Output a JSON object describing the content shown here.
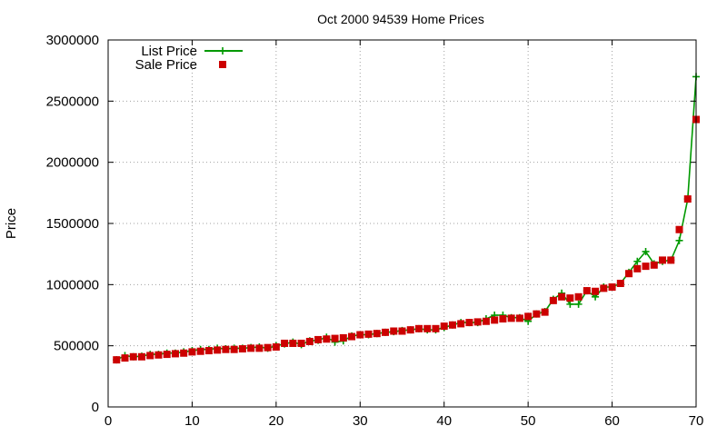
{
  "chart_data": {
    "type": "line",
    "title": "Oct 2000 94539 Home Prices",
    "xlabel": "",
    "ylabel": "Price",
    "xlim": [
      0,
      70
    ],
    "ylim": [
      0,
      3000000
    ],
    "xticks": [
      0,
      10,
      20,
      30,
      40,
      50,
      60,
      70
    ],
    "yticks": [
      0,
      500000,
      1000000,
      1500000,
      2000000,
      2500000,
      3000000
    ],
    "grid": true,
    "legend_position": "top-left",
    "series": [
      {
        "name": "List Price",
        "style": "line-plus",
        "color": "#009900",
        "x": [
          1,
          2,
          3,
          4,
          5,
          6,
          7,
          8,
          9,
          10,
          11,
          12,
          13,
          14,
          15,
          16,
          17,
          18,
          19,
          20,
          21,
          22,
          23,
          24,
          25,
          26,
          27,
          28,
          29,
          30,
          31,
          32,
          33,
          34,
          35,
          36,
          37,
          38,
          39,
          40,
          41,
          42,
          43,
          44,
          45,
          46,
          47,
          48,
          49,
          50,
          51,
          52,
          53,
          54,
          55,
          56,
          57,
          58,
          59,
          60,
          61,
          62,
          63,
          64,
          65,
          66,
          67,
          68,
          69,
          70
        ],
        "y": [
          385000,
          420000,
          410000,
          415000,
          430000,
          430000,
          440000,
          440000,
          450000,
          460000,
          470000,
          470000,
          480000,
          475000,
          480000,
          480000,
          485000,
          490000,
          480000,
          500000,
          515000,
          530000,
          510000,
          540000,
          545000,
          570000,
          530000,
          540000,
          580000,
          590000,
          590000,
          600000,
          610000,
          615000,
          625000,
          630000,
          640000,
          630000,
          630000,
          650000,
          670000,
          690000,
          690000,
          690000,
          720000,
          750000,
          750000,
          730000,
          730000,
          700000,
          760000,
          780000,
          880000,
          930000,
          840000,
          840000,
          950000,
          900000,
          980000,
          980000,
          1010000,
          1100000,
          1190000,
          1270000,
          1170000,
          1190000,
          1200000,
          1360000,
          1700000,
          2700000
        ]
      },
      {
        "name": "Sale Price",
        "style": "square-points",
        "color": "#cc0000",
        "x": [
          1,
          2,
          3,
          4,
          5,
          6,
          7,
          8,
          9,
          10,
          11,
          12,
          13,
          14,
          15,
          16,
          17,
          18,
          19,
          20,
          21,
          22,
          23,
          24,
          25,
          26,
          27,
          28,
          29,
          30,
          31,
          32,
          33,
          34,
          35,
          36,
          37,
          38,
          39,
          40,
          41,
          42,
          43,
          44,
          45,
          46,
          47,
          48,
          49,
          50,
          51,
          52,
          53,
          54,
          55,
          56,
          57,
          58,
          59,
          60,
          61,
          62,
          63,
          64,
          65,
          66,
          67,
          68,
          69,
          70
        ],
        "y": [
          385000,
          400000,
          410000,
          410000,
          420000,
          425000,
          430000,
          435000,
          440000,
          450000,
          455000,
          460000,
          465000,
          470000,
          470000,
          475000,
          480000,
          480000,
          485000,
          490000,
          520000,
          520000,
          520000,
          535000,
          550000,
          555000,
          560000,
          565000,
          575000,
          590000,
          595000,
          600000,
          610000,
          620000,
          620000,
          630000,
          640000,
          640000,
          640000,
          660000,
          670000,
          680000,
          690000,
          695000,
          700000,
          710000,
          720000,
          725000,
          725000,
          740000,
          760000,
          775000,
          870000,
          900000,
          890000,
          900000,
          950000,
          945000,
          970000,
          980000,
          1010000,
          1090000,
          1130000,
          1150000,
          1160000,
          1200000,
          1200000,
          1450000,
          1700000,
          2350000
        ]
      }
    ]
  }
}
